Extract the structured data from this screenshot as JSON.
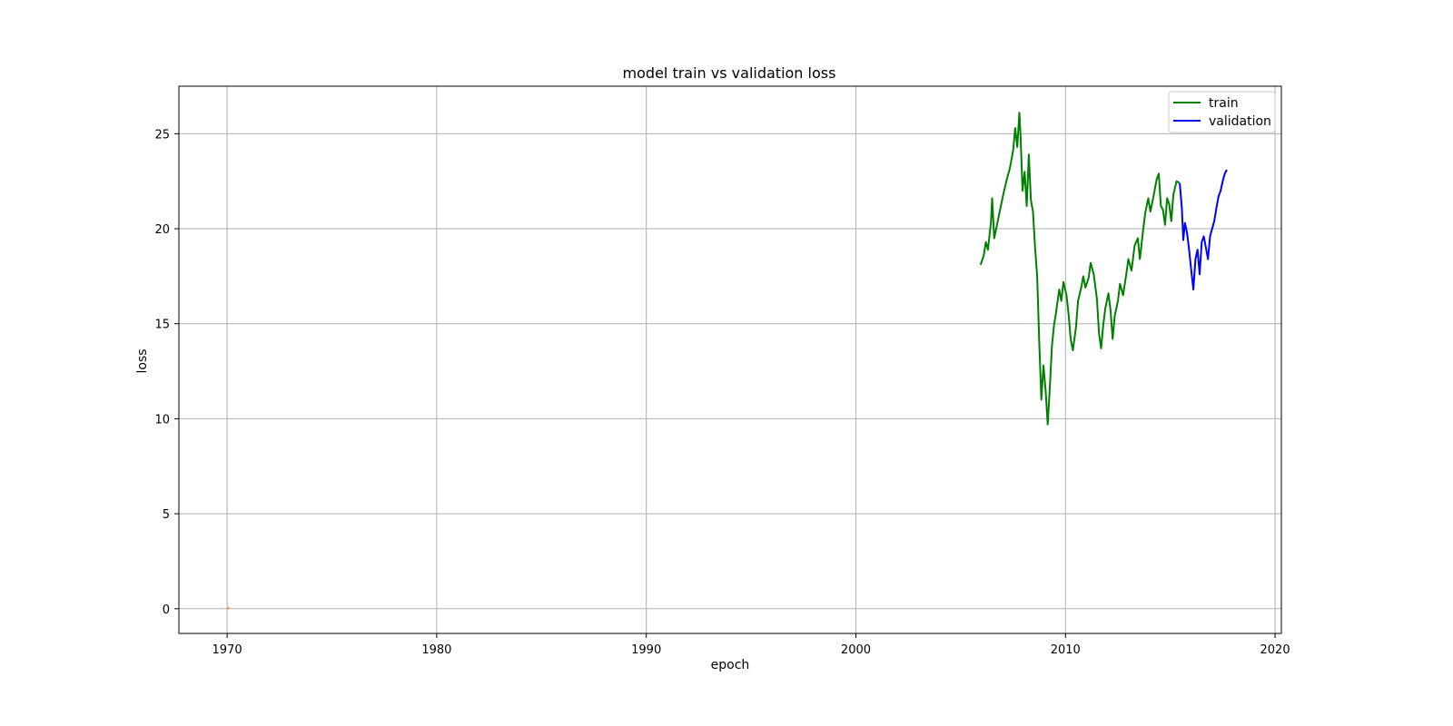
{
  "chart_data": {
    "type": "line",
    "title": "model train vs validation loss",
    "xlabel": "epoch",
    "ylabel": "loss",
    "xlim": [
      1967.7,
      2020.3
    ],
    "ylim": [
      -1.3,
      27.5
    ],
    "xticks": [
      1970,
      1980,
      1990,
      2000,
      2010,
      2020
    ],
    "yticks": [
      0,
      5,
      10,
      15,
      20,
      25
    ],
    "grid": true,
    "legend_position": "top-right",
    "series": [
      {
        "name": "train",
        "color": "#008000",
        "points": [
          [
            2005.95,
            18.1
          ],
          [
            2006.1,
            18.6
          ],
          [
            2006.2,
            19.3
          ],
          [
            2006.3,
            18.9
          ],
          [
            2006.45,
            20.4
          ],
          [
            2006.5,
            21.6
          ],
          [
            2006.6,
            19.5
          ],
          [
            2006.75,
            20.3
          ],
          [
            2006.9,
            21.1
          ],
          [
            2007.05,
            21.9
          ],
          [
            2007.2,
            22.6
          ],
          [
            2007.35,
            23.2
          ],
          [
            2007.5,
            24.1
          ],
          [
            2007.6,
            25.3
          ],
          [
            2007.7,
            24.3
          ],
          [
            2007.8,
            26.1
          ],
          [
            2007.85,
            25.0
          ],
          [
            2007.95,
            22.0
          ],
          [
            2008.05,
            23.0
          ],
          [
            2008.15,
            21.2
          ],
          [
            2008.25,
            23.9
          ],
          [
            2008.35,
            21.5
          ],
          [
            2008.45,
            20.9
          ],
          [
            2008.55,
            19.0
          ],
          [
            2008.65,
            17.5
          ],
          [
            2008.75,
            14.0
          ],
          [
            2008.85,
            11.0
          ],
          [
            2008.95,
            12.8
          ],
          [
            2009.05,
            11.5
          ],
          [
            2009.15,
            9.7
          ],
          [
            2009.25,
            11.6
          ],
          [
            2009.35,
            13.8
          ],
          [
            2009.45,
            14.9
          ],
          [
            2009.55,
            15.6
          ],
          [
            2009.7,
            16.8
          ],
          [
            2009.8,
            16.2
          ],
          [
            2009.9,
            17.2
          ],
          [
            2010.05,
            16.5
          ],
          [
            2010.15,
            15.5
          ],
          [
            2010.25,
            14.2
          ],
          [
            2010.35,
            13.6
          ],
          [
            2010.5,
            14.8
          ],
          [
            2010.6,
            16.2
          ],
          [
            2010.75,
            16.9
          ],
          [
            2010.85,
            17.5
          ],
          [
            2010.95,
            16.9
          ],
          [
            2011.1,
            17.4
          ],
          [
            2011.2,
            18.2
          ],
          [
            2011.35,
            17.6
          ],
          [
            2011.5,
            16.3
          ],
          [
            2011.6,
            14.5
          ],
          [
            2011.7,
            13.7
          ],
          [
            2011.8,
            14.9
          ],
          [
            2011.9,
            15.8
          ],
          [
            2012.05,
            16.6
          ],
          [
            2012.15,
            15.7
          ],
          [
            2012.25,
            14.2
          ],
          [
            2012.35,
            15.4
          ],
          [
            2012.5,
            16.2
          ],
          [
            2012.6,
            17.1
          ],
          [
            2012.75,
            16.5
          ],
          [
            2012.9,
            17.6
          ],
          [
            2013.0,
            18.4
          ],
          [
            2013.15,
            17.8
          ],
          [
            2013.3,
            19.1
          ],
          [
            2013.45,
            19.5
          ],
          [
            2013.55,
            18.4
          ],
          [
            2013.7,
            19.9
          ],
          [
            2013.8,
            20.8
          ],
          [
            2013.95,
            21.6
          ],
          [
            2014.05,
            20.9
          ],
          [
            2014.2,
            21.7
          ],
          [
            2014.35,
            22.6
          ],
          [
            2014.45,
            22.9
          ],
          [
            2014.55,
            21.2
          ],
          [
            2014.65,
            21.0
          ],
          [
            2014.75,
            20.2
          ],
          [
            2014.85,
            21.6
          ],
          [
            2014.95,
            21.3
          ],
          [
            2015.05,
            20.4
          ],
          [
            2015.15,
            21.8
          ],
          [
            2015.3,
            22.5
          ],
          [
            2015.45,
            22.4
          ]
        ]
      },
      {
        "name": "validation",
        "color": "#0000ff",
        "points": [
          [
            2015.45,
            22.4
          ],
          [
            2015.55,
            21.1
          ],
          [
            2015.62,
            19.4
          ],
          [
            2015.7,
            20.3
          ],
          [
            2015.8,
            19.8
          ],
          [
            2015.9,
            18.9
          ],
          [
            2016.0,
            17.8
          ],
          [
            2016.1,
            16.8
          ],
          [
            2016.2,
            18.4
          ],
          [
            2016.3,
            18.9
          ],
          [
            2016.4,
            17.6
          ],
          [
            2016.5,
            19.3
          ],
          [
            2016.6,
            19.6
          ],
          [
            2016.7,
            19.0
          ],
          [
            2016.8,
            18.4
          ],
          [
            2016.9,
            19.6
          ],
          [
            2017.0,
            20.0
          ],
          [
            2017.1,
            20.4
          ],
          [
            2017.2,
            21.1
          ],
          [
            2017.3,
            21.7
          ],
          [
            2017.4,
            22.0
          ],
          [
            2017.5,
            22.5
          ],
          [
            2017.6,
            22.9
          ],
          [
            2017.7,
            23.1
          ]
        ]
      },
      {
        "color": "#ff7f0e",
        "points": [
          [
            1970.0,
            0.05
          ],
          [
            1970.1,
            0.02
          ]
        ]
      }
    ]
  }
}
